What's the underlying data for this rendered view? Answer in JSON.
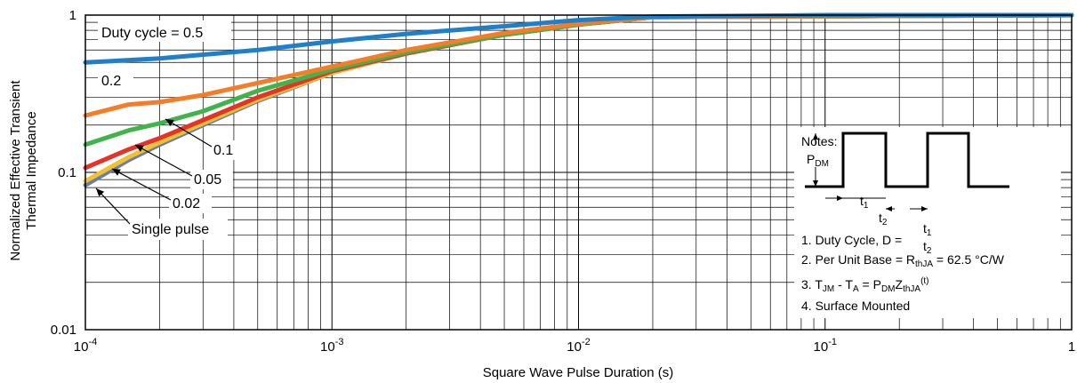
{
  "chart_data": {
    "type": "line",
    "xlabel": "Square Wave Pulse Duration (s)",
    "ylabel_line1": "Normalized Effective Transient",
    "ylabel_line2": "Thermal Impedance",
    "x_scale": "log",
    "y_scale": "log",
    "xlim": [
      0.0001,
      1
    ],
    "ylim": [
      0.01,
      1
    ],
    "x_ticks": [
      {
        "value": 0.0001,
        "base": "10",
        "exp": "-4"
      },
      {
        "value": 0.001,
        "base": "10",
        "exp": "-3"
      },
      {
        "value": 0.01,
        "base": "10",
        "exp": "-2"
      },
      {
        "value": 0.1,
        "base": "10",
        "exp": "-1"
      },
      {
        "value": 1,
        "base": "1",
        "exp": ""
      }
    ],
    "y_ticks": [
      {
        "value": 1,
        "label": "1"
      },
      {
        "value": 0.1,
        "label": "0.1"
      },
      {
        "value": 0.01,
        "label": "0.01"
      }
    ],
    "grid": true,
    "series": [
      {
        "name": "Duty cycle = 0.5",
        "color": "#1f7fc8",
        "x": [
          0.0001,
          0.0002,
          0.0005,
          0.001,
          0.002,
          0.005,
          0.01,
          0.02,
          0.05,
          0.1,
          1
        ],
        "y": [
          0.5,
          0.53,
          0.6,
          0.68,
          0.76,
          0.85,
          0.93,
          0.98,
          0.99,
          1.0,
          1.0
        ]
      },
      {
        "name": "0.2",
        "color": "#f47d2a",
        "x": [
          0.0001,
          0.00015,
          0.0002,
          0.0003,
          0.0005,
          0.001,
          0.002,
          0.005,
          0.01,
          0.02,
          1
        ],
        "y": [
          0.23,
          0.27,
          0.28,
          0.31,
          0.37,
          0.47,
          0.6,
          0.77,
          0.88,
          0.97,
          1.0
        ]
      },
      {
        "name": "0.1",
        "color": "#3fb44a",
        "x": [
          0.0001,
          0.00015,
          0.0002,
          0.0003,
          0.0005,
          0.001,
          0.002,
          0.005,
          0.01,
          0.02,
          1
        ],
        "y": [
          0.15,
          0.185,
          0.205,
          0.245,
          0.33,
          0.45,
          0.58,
          0.75,
          0.87,
          0.97,
          1.0
        ]
      },
      {
        "name": "0.05",
        "color": "#e6332a",
        "x": [
          0.0001,
          0.00015,
          0.0002,
          0.0003,
          0.0005,
          0.001,
          0.002,
          0.005,
          0.01,
          0.02,
          1
        ],
        "y": [
          0.107,
          0.14,
          0.165,
          0.215,
          0.3,
          0.44,
          0.57,
          0.75,
          0.87,
          0.97,
          1.0
        ]
      },
      {
        "name": "0.02",
        "color": "#f2c12e",
        "x": [
          0.0001,
          0.00015,
          0.0002,
          0.0003,
          0.0005,
          0.001,
          0.002,
          0.005,
          0.01,
          0.02,
          1
        ],
        "y": [
          0.088,
          0.125,
          0.155,
          0.205,
          0.29,
          0.43,
          0.57,
          0.75,
          0.87,
          0.97,
          1.0
        ]
      },
      {
        "name": "Single pulse",
        "color": "#6a7fa8",
        "x": [
          0.0001,
          0.00015,
          0.0002,
          0.0003,
          0.0005,
          0.001,
          0.002,
          0.005,
          0.01,
          0.02,
          1
        ],
        "y": [
          0.083,
          0.12,
          0.15,
          0.2,
          0.285,
          0.43,
          0.57,
          0.75,
          0.87,
          0.97,
          1.0
        ]
      }
    ],
    "annotations": [
      {
        "text": "Duty cycle = 0.5"
      },
      {
        "text": "0.2"
      },
      {
        "text": "0.1"
      },
      {
        "text": "0.05"
      },
      {
        "text": "0.02"
      },
      {
        "text": "Single pulse"
      }
    ]
  },
  "notes": {
    "title": "Notes:",
    "pdm_base": "P",
    "pdm_sub": "DM",
    "t1_base": "t",
    "t1_sub": "1",
    "t2_base": "t",
    "t2_sub": "2",
    "line1_text": "1. Duty Cycle, D = ",
    "line1_num": "t",
    "line1_num_sub": "1",
    "line1_den": "t",
    "line1_den_sub": "2",
    "line2_a": "2. Per Unit Base = R",
    "line2_sub": "thJA",
    "line2_b": " = 62.5 °C/W",
    "line3_a": "3. T",
    "line3_sub1": "JM",
    "line3_b": " - T",
    "line3_sub2": "A",
    "line3_c": " = P",
    "line3_sub3": "DM",
    "line3_d": "Z",
    "line3_sub4": "thJA",
    "line3_sup": "(t)",
    "line4": "4. Surface Mounted"
  }
}
